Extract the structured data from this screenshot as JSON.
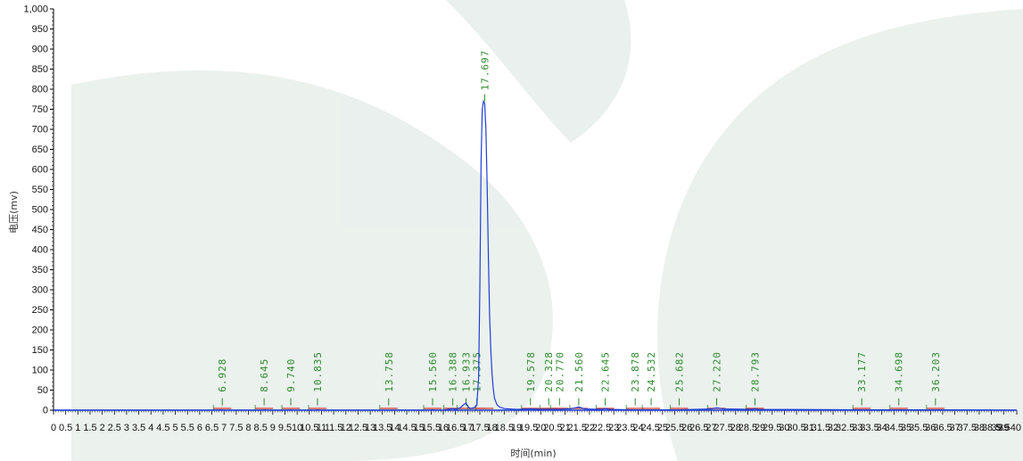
{
  "chart_data": {
    "type": "line",
    "xlabel": "时间(min)",
    "ylabel": "电压(mv)",
    "xlim": [
      0,
      39.54
    ],
    "ylim": [
      -10,
      1000
    ],
    "y_ticks": [
      "0",
      "50",
      "100",
      "150",
      "200",
      "250",
      "300",
      "350",
      "400",
      "450",
      "500",
      "550",
      "600",
      "650",
      "700",
      "750",
      "800",
      "850",
      "900",
      "950",
      "1,000"
    ],
    "x_ticks": [
      "0",
      "0.5",
      "1",
      "1.5",
      "2",
      "2.5",
      "3",
      "3.5",
      "4",
      "4.5",
      "5",
      "5.5",
      "6",
      "6.5",
      "7",
      "7.5",
      "8",
      "8.5",
      "9",
      "9.5",
      "10",
      "10.5",
      "11",
      "11.5",
      "12",
      "12.5",
      "13",
      "13.5",
      "14",
      "14.5",
      "15",
      "15.5",
      "16",
      "16.5",
      "17",
      "17.5",
      "18",
      "18.5",
      "19",
      "19.5",
      "20",
      "20.5",
      "21",
      "21.5",
      "22",
      "22.5",
      "23",
      "23.5",
      "24",
      "24.5",
      "25",
      "25.5",
      "26",
      "26.5",
      "27",
      "27.5",
      "28",
      "28.5",
      "29",
      "29.5",
      "30",
      "30.5",
      "31",
      "31.5",
      "32",
      "32.5",
      "33",
      "33.5",
      "34",
      "34.5",
      "35",
      "35.5",
      "36",
      "36.5",
      "37",
      "37.5",
      "38",
      "38.5",
      "39",
      "39.540"
    ],
    "colors": {
      "signal": "#1f3fd8",
      "peak_label": "#2b8a2b",
      "baseline": "#d43a2a",
      "axis": "#000000"
    },
    "series": [
      {
        "x": [
          0,
          6.5,
          6.928,
          7.0,
          8.5,
          8.645,
          8.8,
          9.6,
          9.74,
          9.9,
          10.7,
          10.835,
          11.0,
          13.6,
          13.758,
          13.9,
          15.4,
          15.56,
          15.7,
          16.0,
          16.2,
          16.388,
          16.5,
          16.7,
          16.8,
          16.933,
          17.0,
          17.1,
          17.25,
          17.375,
          17.45,
          17.5,
          17.55,
          17.6,
          17.65,
          17.697,
          17.75,
          17.8,
          17.85,
          17.9,
          17.95,
          18.0,
          18.05,
          18.1,
          18.2,
          18.3,
          18.5,
          19.0,
          19.578,
          20.0,
          20.328,
          20.77,
          21.3,
          21.56,
          21.8,
          22.5,
          22.645,
          22.8,
          23.878,
          24.532,
          25.682,
          27.0,
          27.22,
          27.5,
          28.7,
          28.793,
          28.9,
          33.177,
          34.698,
          36.203,
          39.54
        ],
        "y": [
          0,
          0,
          1,
          0,
          0,
          1,
          0,
          0,
          1,
          0,
          0,
          1,
          0,
          0,
          0,
          0,
          0,
          1,
          0,
          0,
          2,
          4,
          2,
          6,
          12,
          18,
          10,
          4,
          6,
          12,
          80,
          300,
          620,
          750,
          770,
          765,
          700,
          560,
          380,
          240,
          150,
          90,
          55,
          30,
          14,
          8,
          4,
          2,
          3,
          2,
          2,
          2,
          4,
          8,
          3,
          2,
          4,
          2,
          1,
          1,
          1,
          3,
          6,
          3,
          2,
          4,
          2,
          1,
          1,
          1,
          0
        ]
      }
    ],
    "peaks": [
      {
        "label": "6.928",
        "x": 6.928
      },
      {
        "label": "8.645",
        "x": 8.645
      },
      {
        "label": "9.740",
        "x": 9.74
      },
      {
        "label": "10.835",
        "x": 10.835
      },
      {
        "label": "13.758",
        "x": 13.758
      },
      {
        "label": "15.560",
        "x": 15.56
      },
      {
        "label": "16.388",
        "x": 16.388
      },
      {
        "label": "16.933",
        "x": 16.933
      },
      {
        "label": "17.375",
        "x": 17.375
      },
      {
        "label": "17.697",
        "x": 17.697
      },
      {
        "label": "19.578",
        "x": 19.578
      },
      {
        "label": "20.328",
        "x": 20.328
      },
      {
        "label": "20.770",
        "x": 20.77
      },
      {
        "label": "21.560",
        "x": 21.56
      },
      {
        "label": "22.645",
        "x": 22.645
      },
      {
        "label": "23.878",
        "x": 23.878
      },
      {
        "label": "24.532",
        "x": 24.532
      },
      {
        "label": "25.682",
        "x": 25.682
      },
      {
        "label": "27.220",
        "x": 27.22
      },
      {
        "label": "28.793",
        "x": 28.793
      },
      {
        "label": "33.177",
        "x": 33.177
      },
      {
        "label": "34.698",
        "x": 34.698
      },
      {
        "label": "36.203",
        "x": 36.203
      }
    ],
    "grid": false,
    "legend": "none"
  }
}
